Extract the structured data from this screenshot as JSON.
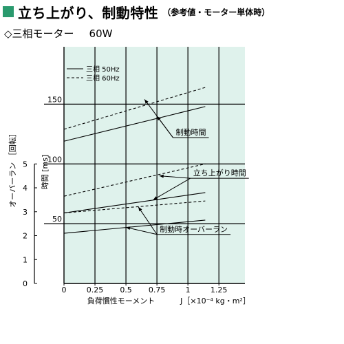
{
  "header": {
    "title": "立ち上がり、制動特性",
    "title_sub": "（参考値・モーター単体時）",
    "subtitle": "◇三相モーター",
    "subtitle_spec": "60W",
    "accent_color": "#2a9a6e",
    "plot_bg": "#dff2ec"
  },
  "chart_data": {
    "type": "line",
    "xlabel": "負荷慣性モーメント",
    "xunit": "J［×10⁻⁴ kg・m²］",
    "xlim": [
      0,
      1.46
    ],
    "x_ticks": [
      0,
      0.25,
      0.5,
      0.75,
      1,
      1.25
    ],
    "x_tick_labels": [
      "0",
      "0.25",
      "0.5",
      "0.75",
      "1",
      "1.25"
    ],
    "y_time_label": "時間 [ms]",
    "y_time_ticks": [
      50,
      100,
      150
    ],
    "y_time_tick_labels": [
      "50",
      "100",
      "150"
    ],
    "y_over_label": "オーバーラン ［回転］",
    "y_over_ticks": [
      0,
      1,
      2,
      3,
      4,
      5
    ],
    "y_over_tick_labels": [
      "0",
      "1",
      "2",
      "3",
      "4",
      "5"
    ],
    "y_over_scale_ms_per_rev": 20,
    "ylim_ms": [
      0,
      198
    ],
    "legend": [
      {
        "name": "三相 50Hz",
        "dash": "solid"
      },
      {
        "name": "三相 60Hz",
        "dash": "dashed"
      }
    ],
    "series": [
      {
        "group": "制動時間",
        "freq": "50Hz",
        "dash": "solid",
        "x": [
          0,
          1.14
        ],
        "y": [
          119,
          148
        ]
      },
      {
        "group": "制動時間",
        "freq": "60Hz",
        "dash": "dashed",
        "x": [
          0,
          1.14
        ],
        "y": [
          129,
          164
        ]
      },
      {
        "group": "立ち上がり時間",
        "freq": "50Hz",
        "dash": "solid",
        "x": [
          0,
          1.14
        ],
        "y": [
          59,
          76
        ]
      },
      {
        "group": "立ち上がり時間",
        "freq": "60Hz",
        "dash": "dashed",
        "x": [
          0,
          1.14
        ],
        "y": [
          73,
          100
        ]
      },
      {
        "group": "制動時オーバーラン",
        "freq": "60Hz",
        "dash": "dashed",
        "x": [
          0,
          1.14
        ],
        "y": [
          59,
          69
        ]
      },
      {
        "group": "制動時オーバーラン",
        "freq": "50Hz",
        "dash": "solid",
        "x": [
          0,
          1.14
        ],
        "y": [
          42,
          53
        ]
      }
    ],
    "annotations": [
      {
        "label": "制動時間",
        "points_to": [
          [
            0.75,
            140
          ],
          [
            0.65,
            154
          ]
        ],
        "label_at": [
          0.88,
          122
        ]
      },
      {
        "label": "立ち上がり時間",
        "points_to": [
          [
            0.77,
            90
          ],
          [
            0.72,
            70
          ]
        ],
        "label_at": [
          1.02,
          88
        ]
      },
      {
        "label": "制動時オーバーラン",
        "points_to": [
          [
            0.5,
            47
          ],
          [
            0.6,
            64
          ]
        ],
        "label_at": [
          0.75,
          41
        ]
      }
    ]
  }
}
